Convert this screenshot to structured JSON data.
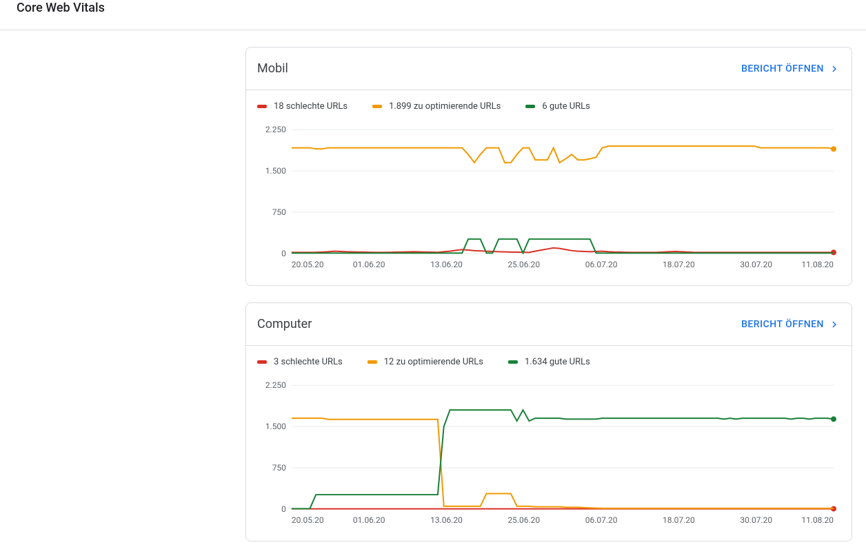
{
  "page": {
    "title": "Core Web Vitals",
    "open_report_label": "BERICHT ÖFFNEN"
  },
  "cards": [
    {
      "id": "mobil",
      "title": "Mobil",
      "chart": {
        "type": "line",
        "ylim": [
          0,
          2250
        ],
        "yticks": [
          0,
          750,
          1500,
          2250
        ],
        "x_categories": [
          "20.05.20",
          "01.06.20",
          "13.06.20",
          "25.06.20",
          "06.07.20",
          "18.07.20",
          "30.07.20",
          "11.08.20"
        ],
        "x_n_points": 90,
        "grid_color": "#e8eaed",
        "background_color": "#ffffff",
        "label_color": "#5f6368",
        "label_fontsize": 12,
        "series": [
          {
            "name": "schlecht",
            "color": "#d93025",
            "legend_label": "18 schlechte URLs",
            "end_dot": true,
            "values": [
              18,
              18,
              18,
              18,
              20,
              25,
              30,
              40,
              35,
              30,
              28,
              25,
              22,
              20,
              18,
              18,
              20,
              22,
              25,
              28,
              30,
              28,
              25,
              22,
              20,
              30,
              40,
              55,
              70,
              60,
              50,
              45,
              40,
              35,
              30,
              28,
              25,
              22,
              20,
              18,
              40,
              60,
              80,
              100,
              90,
              70,
              50,
              40,
              35,
              30,
              35,
              40,
              30,
              25,
              22,
              20,
              18,
              18,
              18,
              18,
              20,
              25,
              30,
              35,
              30,
              25,
              20,
              18,
              18,
              18,
              18,
              18,
              18,
              18,
              18,
              18,
              18,
              18,
              18,
              18,
              18,
              18,
              18,
              18,
              18,
              18,
              18,
              18,
              18,
              18
            ]
          },
          {
            "name": "optimierend",
            "color": "#f29900",
            "legend_label": "1.899 zu optimierende URLs",
            "end_dot": true,
            "values": [
              1920,
              1920,
              1920,
              1920,
              1900,
              1900,
              1920,
              1920,
              1920,
              1920,
              1920,
              1920,
              1920,
              1920,
              1920,
              1920,
              1920,
              1920,
              1920,
              1920,
              1920,
              1920,
              1920,
              1920,
              1920,
              1920,
              1920,
              1920,
              1920,
              1800,
              1650,
              1800,
              1920,
              1920,
              1920,
              1650,
              1650,
              1800,
              1920,
              1920,
              1700,
              1700,
              1700,
              1920,
              1650,
              1720,
              1800,
              1700,
              1700,
              1720,
              1750,
              1920,
              1950,
              1950,
              1950,
              1950,
              1950,
              1950,
              1950,
              1950,
              1950,
              1950,
              1950,
              1950,
              1950,
              1950,
              1950,
              1950,
              1950,
              1950,
              1950,
              1950,
              1950,
              1950,
              1950,
              1950,
              1950,
              1920,
              1920,
              1920,
              1920,
              1920,
              1920,
              1920,
              1920,
              1920,
              1920,
              1920,
              1920,
              1899
            ]
          },
          {
            "name": "gut",
            "color": "#188038",
            "legend_label": "6 gute URLs",
            "end_dot": false,
            "values": [
              6,
              6,
              6,
              6,
              6,
              6,
              6,
              6,
              6,
              6,
              6,
              6,
              6,
              6,
              6,
              6,
              6,
              6,
              6,
              6,
              6,
              6,
              6,
              6,
              6,
              6,
              6,
              6,
              6,
              260,
              260,
              260,
              6,
              6,
              260,
              260,
              260,
              260,
              6,
              260,
              260,
              260,
              260,
              260,
              260,
              260,
              260,
              260,
              260,
              260,
              6,
              6,
              6,
              6,
              6,
              6,
              6,
              6,
              6,
              6,
              6,
              6,
              6,
              6,
              6,
              6,
              6,
              6,
              6,
              6,
              6,
              6,
              6,
              6,
              6,
              6,
              6,
              6,
              6,
              6,
              6,
              6,
              6,
              6,
              6,
              6,
              6,
              6,
              6,
              6
            ]
          }
        ]
      }
    },
    {
      "id": "computer",
      "title": "Computer",
      "chart": {
        "type": "line",
        "ylim": [
          0,
          2250
        ],
        "yticks": [
          0,
          750,
          1500,
          2250
        ],
        "x_categories": [
          "20.05.20",
          "01.06.20",
          "13.06.20",
          "25.06.20",
          "06.07.20",
          "18.07.20",
          "30.07.20",
          "11.08.20"
        ],
        "x_n_points": 90,
        "grid_color": "#e8eaed",
        "background_color": "#ffffff",
        "label_color": "#5f6368",
        "label_fontsize": 12,
        "series": [
          {
            "name": "schlecht",
            "color": "#d93025",
            "legend_label": "3 schlechte URLs",
            "end_dot": true,
            "values": [
              3,
              3,
              3,
              3,
              3,
              3,
              3,
              3,
              3,
              3,
              3,
              3,
              3,
              3,
              3,
              3,
              3,
              3,
              3,
              3,
              3,
              3,
              3,
              3,
              3,
              3,
              3,
              3,
              3,
              3,
              3,
              3,
              3,
              3,
              3,
              3,
              3,
              3,
              3,
              3,
              3,
              3,
              3,
              3,
              3,
              3,
              3,
              3,
              3,
              3,
              3,
              3,
              3,
              3,
              3,
              3,
              3,
              3,
              3,
              3,
              3,
              3,
              3,
              3,
              3,
              3,
              3,
              3,
              3,
              3,
              3,
              3,
              3,
              3,
              3,
              3,
              3,
              3,
              3,
              3,
              3,
              3,
              3,
              3,
              3,
              3,
              3,
              3,
              3,
              3
            ]
          },
          {
            "name": "optimierend",
            "color": "#f29900",
            "legend_label": "12 zu optimierende URLs",
            "end_dot": false,
            "values": [
              1650,
              1650,
              1650,
              1650,
              1650,
              1650,
              1630,
              1630,
              1630,
              1630,
              1630,
              1630,
              1630,
              1630,
              1630,
              1630,
              1630,
              1630,
              1630,
              1630,
              1630,
              1630,
              1630,
              1630,
              1630,
              50,
              50,
              50,
              50,
              50,
              50,
              50,
              280,
              280,
              280,
              280,
              280,
              50,
              50,
              50,
              40,
              40,
              40,
              40,
              40,
              30,
              30,
              30,
              25,
              20,
              15,
              12,
              12,
              12,
              12,
              12,
              12,
              12,
              12,
              12,
              12,
              12,
              12,
              12,
              12,
              12,
              12,
              12,
              12,
              12,
              12,
              12,
              12,
              12,
              12,
              12,
              12,
              12,
              12,
              12,
              12,
              12,
              12,
              12,
              12,
              12,
              12,
              12,
              12,
              12
            ]
          },
          {
            "name": "gut",
            "color": "#188038",
            "legend_label": "1.634 gute URLs",
            "end_dot": true,
            "values": [
              6,
              6,
              6,
              6,
              260,
              260,
              260,
              260,
              260,
              260,
              260,
              260,
              260,
              260,
              260,
              260,
              260,
              260,
              260,
              260,
              260,
              260,
              260,
              260,
              260,
              1500,
              1800,
              1800,
              1800,
              1800,
              1800,
              1800,
              1800,
              1800,
              1800,
              1800,
              1800,
              1600,
              1800,
              1600,
              1650,
              1650,
              1650,
              1650,
              1650,
              1634,
              1634,
              1634,
              1634,
              1634,
              1634,
              1650,
              1650,
              1650,
              1650,
              1650,
              1650,
              1650,
              1650,
              1650,
              1650,
              1650,
              1650,
              1650,
              1650,
              1650,
              1650,
              1650,
              1650,
              1650,
              1650,
              1634,
              1650,
              1634,
              1650,
              1650,
              1650,
              1650,
              1650,
              1650,
              1650,
              1650,
              1634,
              1650,
              1650,
              1634,
              1650,
              1650,
              1650,
              1634
            ]
          }
        ]
      }
    }
  ]
}
